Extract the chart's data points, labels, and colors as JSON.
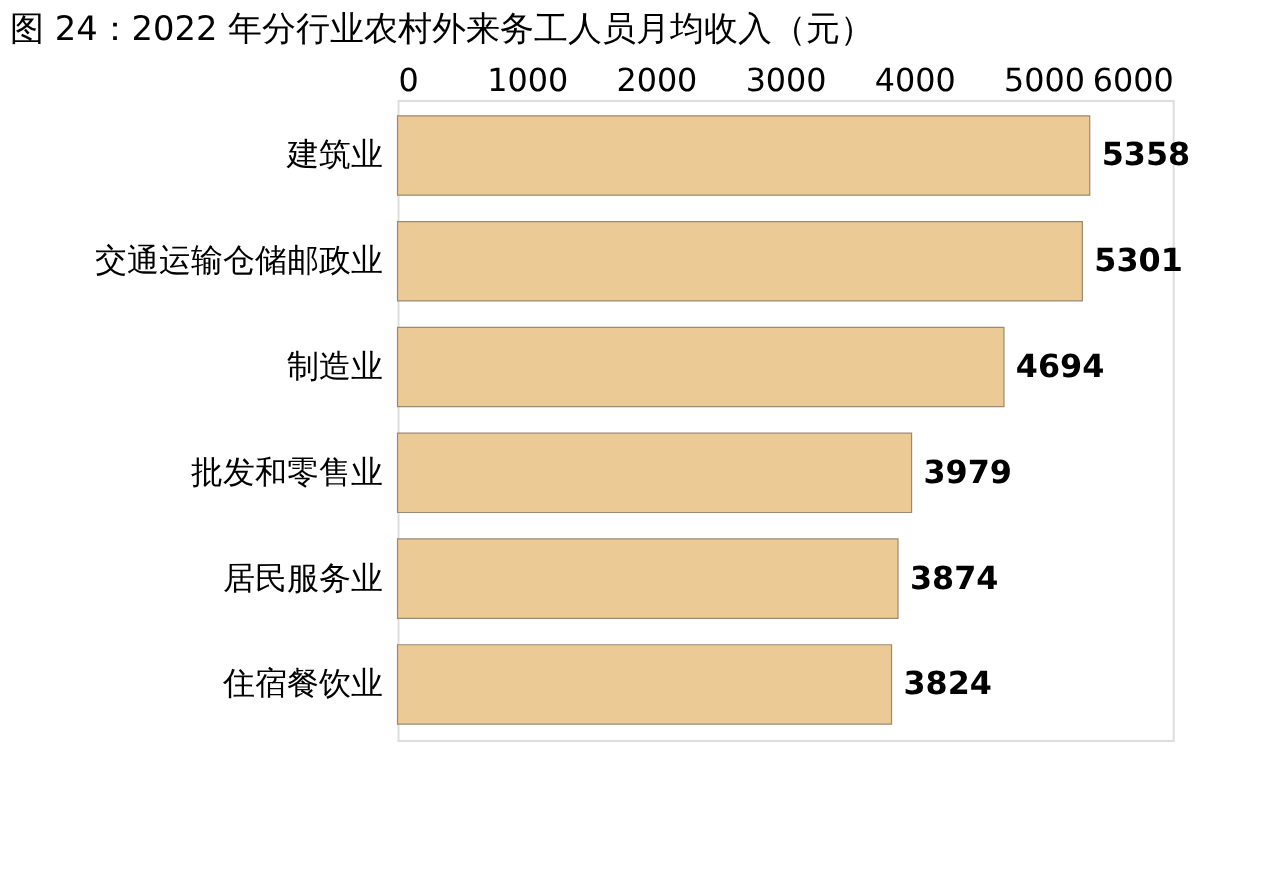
{
  "chart_data": {
    "type": "bar",
    "orientation": "horizontal",
    "title": "图 24：2022 年分行业农村外来务工人员月均收入（元）",
    "categories": [
      "建筑业",
      "交通运输仓储邮政业",
      "制造业",
      "批发和零售业",
      "居民服务业",
      "住宿餐饮业"
    ],
    "values": [
      5358,
      5301,
      4694,
      3979,
      3874,
      3824
    ],
    "color": "#ecca96",
    "xlim": [
      0,
      6000
    ],
    "xticks": [
      0,
      1000,
      2000,
      3000,
      4000,
      5000,
      6000
    ],
    "grid": false,
    "data_labels": true,
    "legend": false
  }
}
